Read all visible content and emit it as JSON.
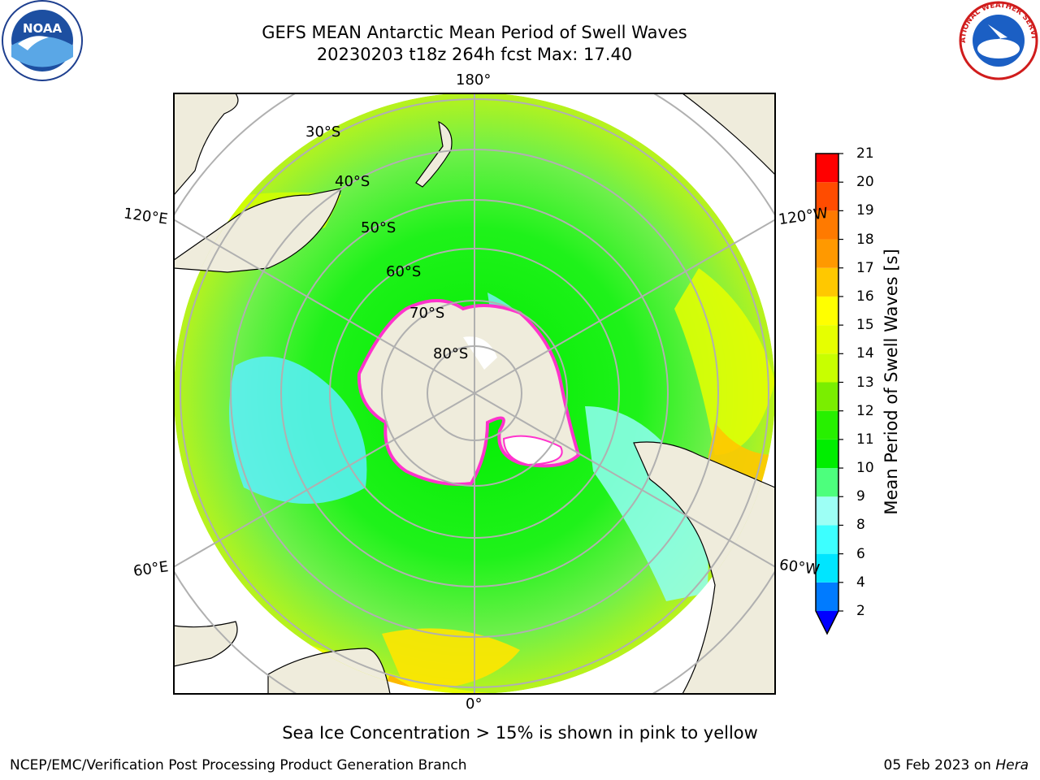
{
  "header": {
    "title_line1": "GEFS MEAN Antarctic Mean Period of Swell Waves",
    "title_line2": "20230203 t18z 264h fcst   Max: 17.40"
  },
  "logos": {
    "noaa_text": "NOAA",
    "nws_text": "NATIONAL WEATHER SERVICE"
  },
  "map": {
    "projection": "south-polar-stereographic",
    "land_color": "#efecdc",
    "longitude_labels": {
      "top": "180°",
      "bottom": "0°",
      "upper_left": "120°E",
      "upper_right": "120°W",
      "lower_left": "60°E",
      "lower_right": "60°W"
    },
    "latitude_labels": [
      "30°S",
      "40°S",
      "50°S",
      "60°S",
      "70°S",
      "80°S"
    ]
  },
  "colorbar": {
    "label": "Mean Period of Swell Waves [s]",
    "ticks": [
      "21",
      "20",
      "19",
      "18",
      "17",
      "16",
      "15",
      "14",
      "13",
      "12",
      "11",
      "10",
      "9",
      "8",
      "6",
      "4",
      "2"
    ],
    "colors": [
      "#0000ff",
      "#007bff",
      "#00e5ff",
      "#3dffff",
      "#9dfff5",
      "#4dff7d",
      "#00ee00",
      "#27f000",
      "#7aee00",
      "#c8ff00",
      "#e6ff00",
      "#ffff00",
      "#ffc800",
      "#ff9900",
      "#ff7a00",
      "#ff4c00",
      "#ff0000"
    ],
    "extend": "min"
  },
  "caption": "Sea Ice Concentration > 15% is shown in pink to yellow",
  "footer": {
    "left": "NCEP/EMC/Verification Post Processing Product Generation Branch",
    "date": "05 Feb 2023 on",
    "host": "Hera"
  }
}
